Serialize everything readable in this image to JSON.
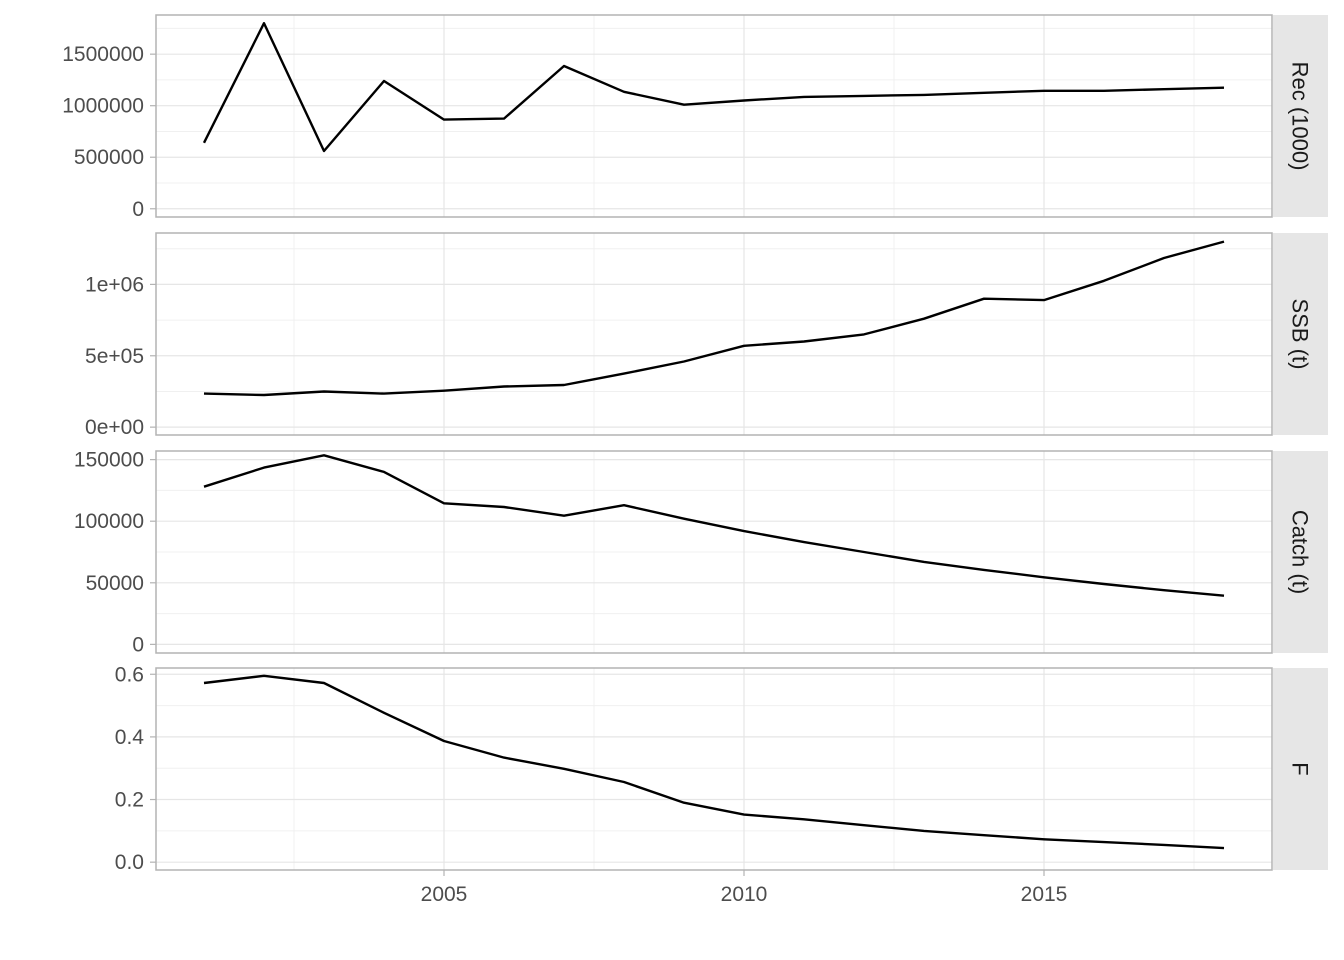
{
  "chart_data": {
    "type": "line",
    "layout": "faceted-vertical",
    "x": [
      2001,
      2002,
      2003,
      2004,
      2005,
      2006,
      2007,
      2008,
      2009,
      2010,
      2011,
      2012,
      2013,
      2014,
      2015,
      2016,
      2017,
      2018
    ],
    "xlim": [
      2000.2,
      2018.8
    ],
    "x_ticks": [
      2005,
      2010,
      2015
    ],
    "x_tick_labels": [
      "2005",
      "2010",
      "2015"
    ],
    "line_color": "#000000",
    "grid": true,
    "panels": [
      {
        "name": "Rec (1000)",
        "values": [
          640000,
          1800000,
          560000,
          1240000,
          865000,
          875000,
          1385000,
          1135000,
          1010000,
          1050000,
          1085000,
          1095000,
          1105000,
          1125000,
          1145000,
          1145000,
          1160000,
          1175000
        ],
        "ylim": [
          -80000,
          1880000
        ],
        "y_ticks": [
          0,
          500000,
          1000000,
          1500000
        ],
        "y_tick_labels": [
          "0",
          "500000",
          "1000000",
          "1500000"
        ]
      },
      {
        "name": "SSB (t)",
        "values": [
          235000,
          225000,
          250000,
          235000,
          255000,
          285000,
          295000,
          375000,
          460000,
          570000,
          600000,
          650000,
          760000,
          900000,
          890000,
          1025000,
          1185000,
          1300000
        ],
        "ylim": [
          -55000,
          1360000
        ],
        "y_ticks": [
          0,
          500000,
          1000000
        ],
        "y_tick_labels": [
          "0e+00",
          "5e+05",
          "1e+06"
        ]
      },
      {
        "name": "Catch (t)",
        "values": [
          128000,
          143500,
          153500,
          140000,
          114500,
          111500,
          104500,
          113000,
          102000,
          92000,
          83000,
          75000,
          67000,
          60500,
          54500,
          49000,
          44000,
          39500
        ],
        "ylim": [
          -7000,
          157000
        ],
        "y_ticks": [
          0,
          50000,
          100000,
          150000
        ],
        "y_tick_labels": [
          "0",
          "50000",
          "100000",
          "150000"
        ]
      },
      {
        "name": "F",
        "values": [
          0.572,
          0.595,
          0.572,
          0.477,
          0.387,
          0.334,
          0.298,
          0.256,
          0.19,
          0.152,
          0.137,
          0.118,
          0.1,
          0.086,
          0.073,
          0.064,
          0.055,
          0.045
        ],
        "ylim": [
          -0.025,
          0.62
        ],
        "y_ticks": [
          0,
          0.2,
          0.4,
          0.6
        ],
        "y_tick_labels": [
          "0.0",
          "0.2",
          "0.4",
          "0.6"
        ]
      }
    ]
  }
}
